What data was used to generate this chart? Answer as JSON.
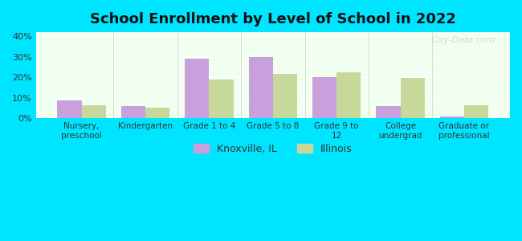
{
  "title": "School Enrollment by Level of School in 2022",
  "categories": [
    "Nursery,\npreschool",
    "Kindergarten",
    "Grade 1 to 4",
    "Grade 5 to 8",
    "Grade 9 to\n12",
    "College\nundergrad",
    "Graduate or\nprofessional"
  ],
  "knoxville": [
    8.5,
    6.0,
    29.0,
    30.0,
    20.0,
    6.0,
    1.0
  ],
  "illinois": [
    6.5,
    5.0,
    19.0,
    21.5,
    22.5,
    19.5,
    6.5
  ],
  "knoxville_color": "#c9a0dc",
  "illinois_color": "#c8d89a",
  "background_outer": "#00e5ff",
  "background_plot_top": "#f0fff0",
  "background_plot_bottom": "#e8f5e9",
  "ylim": [
    0,
    42
  ],
  "yticks": [
    0,
    10,
    20,
    30,
    40
  ],
  "bar_width": 0.38,
  "legend_knoxville": "Knoxville, IL",
  "legend_illinois": "Illinois",
  "watermark": "City-Data.com"
}
